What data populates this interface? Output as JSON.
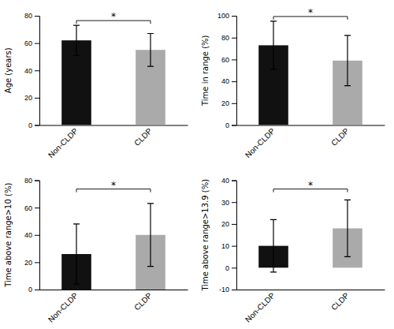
{
  "chart_data": [
    {
      "type": "bar",
      "y_label": "Age (years)",
      "categories": [
        "Non-CLDP",
        "CLDP"
      ],
      "values": [
        62,
        55
      ],
      "errors": [
        11,
        12
      ],
      "colors": [
        "#111111",
        "#aaaaaa"
      ],
      "ylim": [
        0,
        80
      ],
      "yticks": [
        0,
        20,
        40,
        60,
        80
      ],
      "annotation": "*"
    },
    {
      "type": "bar",
      "y_label": "Time in range (%)",
      "categories": [
        "Non-CLDP",
        "CLDP"
      ],
      "values": [
        73,
        59
      ],
      "errors": [
        22,
        23
      ],
      "colors": [
        "#111111",
        "#aaaaaa"
      ],
      "ylim": [
        0,
        100
      ],
      "yticks": [
        0,
        20,
        40,
        60,
        80,
        100
      ],
      "annotation": "*"
    },
    {
      "type": "bar",
      "y_label": "Time above range>10 (%)",
      "categories": [
        "Non-CLDP",
        "CLDP"
      ],
      "values": [
        26,
        40
      ],
      "errors": [
        22,
        23
      ],
      "colors": [
        "#111111",
        "#aaaaaa"
      ],
      "ylim": [
        0,
        80
      ],
      "yticks": [
        0,
        20,
        40,
        60,
        80
      ],
      "annotation": "*"
    },
    {
      "type": "bar",
      "y_label": "Time above range>13.9 (%)",
      "categories": [
        "Non-CLDP",
        "CLDP"
      ],
      "values": [
        10,
        18
      ],
      "errors": [
        12,
        13
      ],
      "colors": [
        "#111111",
        "#aaaaaa"
      ],
      "ylim": [
        -10,
        40
      ],
      "yticks": [
        -10,
        0,
        10,
        20,
        30,
        40
      ],
      "annotation": "*"
    }
  ]
}
